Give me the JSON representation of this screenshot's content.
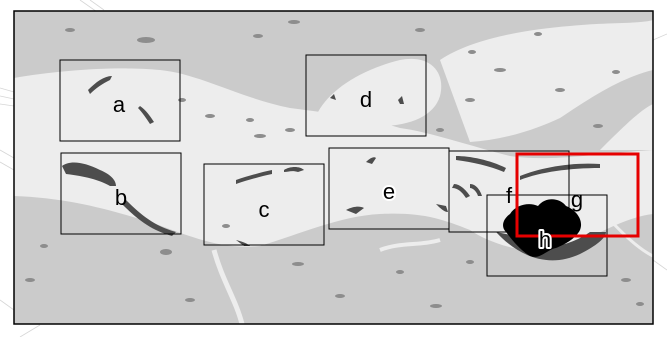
{
  "map": {
    "colors": {
      "land": "#cbcbcb",
      "water": "#ededed",
      "features": "#8d8d8d",
      "dark_features": "#4d4d4d",
      "densest_features": "#000000",
      "frame": "#000000",
      "highlight_frame": "#e60000"
    },
    "panels": [
      {
        "id": "a",
        "label": "a"
      },
      {
        "id": "b",
        "label": "b"
      },
      {
        "id": "c",
        "label": "c"
      },
      {
        "id": "d",
        "label": "d"
      },
      {
        "id": "e",
        "label": "e"
      },
      {
        "id": "f",
        "label": "f"
      },
      {
        "id": "g",
        "label": "g"
      },
      {
        "id": "h",
        "label": "h"
      }
    ],
    "highlighted_panel": "g"
  }
}
